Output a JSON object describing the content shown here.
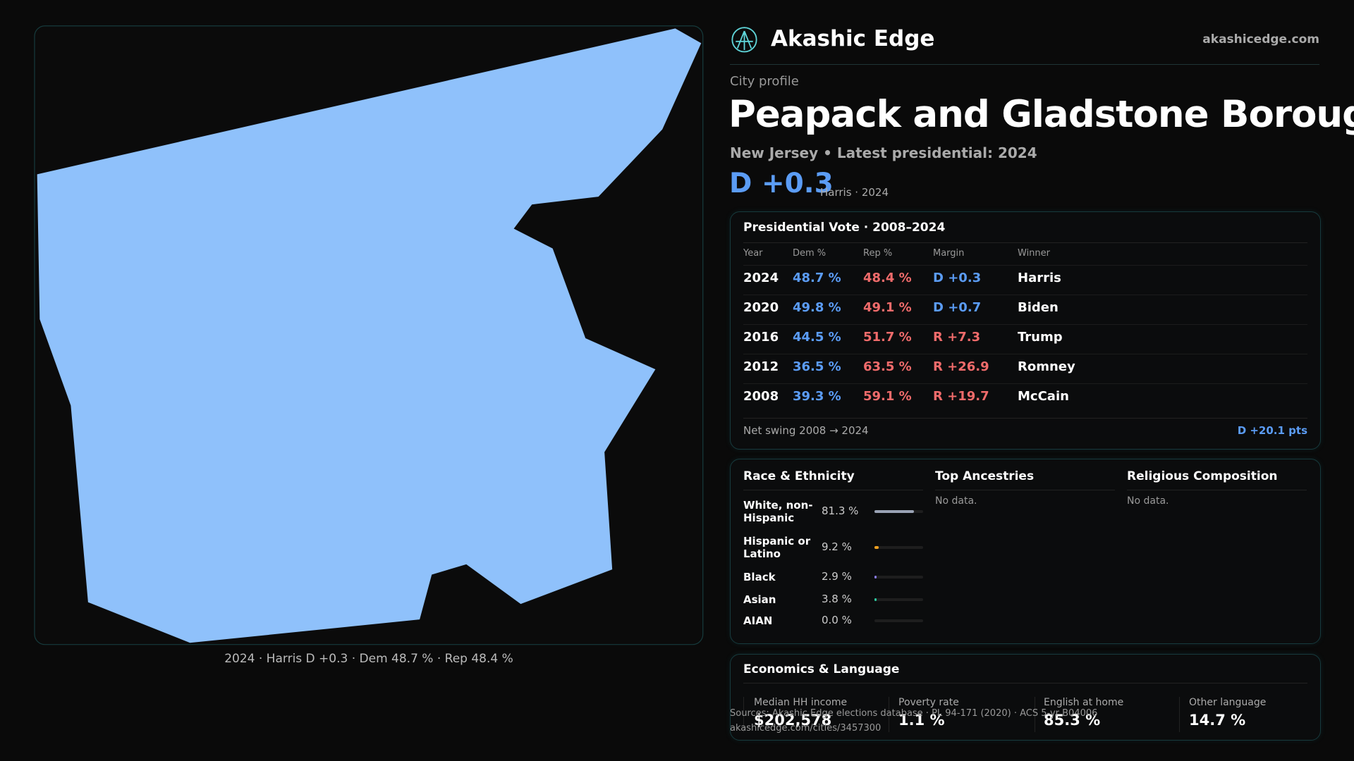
{
  "header": {
    "brand": "Akashic Edge",
    "site": "akashicedge.com"
  },
  "profile": {
    "kicker": "City profile",
    "title": "Peapack and Gladstone Borough",
    "subtitle": "New Jersey • Latest presidential: 2024",
    "margin": "D +0.3",
    "margin_note": "Harris · 2024"
  },
  "map": {
    "caption": "2024 · Harris D +0.3 · Dem 48.7 % · Rep 48.4 %",
    "fill": "#8fc1fb"
  },
  "vote": {
    "title": "Presidential Vote · 2008–2024",
    "columns": [
      "Year",
      "Dem %",
      "Rep %",
      "Margin",
      "Winner"
    ],
    "rows": [
      [
        "2024",
        "48.7 %",
        "48.4 %",
        "D +0.3",
        "Harris"
      ],
      [
        "2020",
        "49.8 %",
        "49.1 %",
        "D +0.7",
        "Biden"
      ],
      [
        "2016",
        "44.5 %",
        "51.7 %",
        "R +7.3",
        "Trump"
      ],
      [
        "2012",
        "36.5 %",
        "63.5 %",
        "R +26.9",
        "Romney"
      ],
      [
        "2008",
        "39.3 %",
        "59.1 %",
        "R +19.7",
        "McCain"
      ]
    ],
    "footer_label": "Net swing 2008 → 2024",
    "footer_value": "D +20.1 pts"
  },
  "race": {
    "title": "Race & Ethnicity",
    "categories": [
      "White, non-Hispanic",
      "Hispanic or Latino",
      "Black",
      "Asian",
      "AIAN"
    ],
    "values": [
      81.3,
      9.2,
      2.9,
      3.8,
      0.0
    ],
    "value_labels": [
      "81.3 %",
      "9.2 %",
      "2.9 %",
      "3.8 %",
      "0.0 %"
    ],
    "colors": [
      "#9aa3b5",
      "#f0a020",
      "#8a7cf0",
      "#2cc9a0",
      "#888888"
    ]
  },
  "ancestries": {
    "title": "Top Ancestries",
    "note": "No data."
  },
  "religion": {
    "title": "Religious Composition",
    "note": "No data."
  },
  "economics": {
    "title": "Economics & Language",
    "items": [
      {
        "label": "Median HH income",
        "value": "$202,578"
      },
      {
        "label": "Poverty rate",
        "value": "1.1 %"
      },
      {
        "label": "English at home",
        "value": "85.3 %"
      },
      {
        "label": "Other language",
        "value": "14.7 %"
      }
    ]
  },
  "sources": {
    "line1": "Sources: Akashic Edge elections database · PL 94-171 (2020) · ACS 5-yr B04006",
    "line2": "akashicedge.com/cities/3457300"
  }
}
